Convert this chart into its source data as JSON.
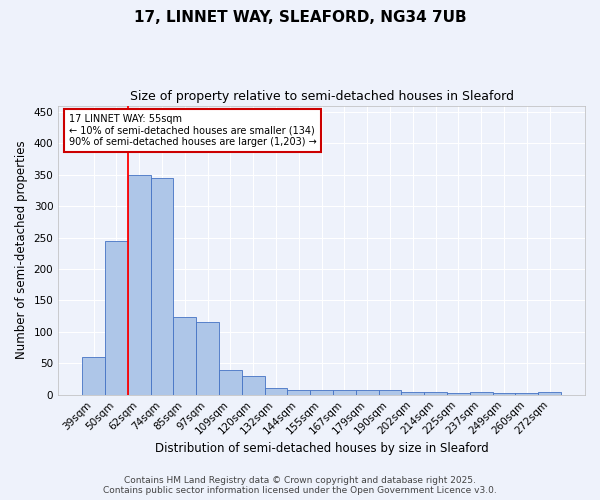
{
  "title_line1": "17, LINNET WAY, SLEAFORD, NG34 7UB",
  "title_line2": "Size of property relative to semi-detached houses in Sleaford",
  "xlabel": "Distribution of semi-detached houses by size in Sleaford",
  "ylabel": "Number of semi-detached properties",
  "categories": [
    "39sqm",
    "50sqm",
    "62sqm",
    "74sqm",
    "85sqm",
    "97sqm",
    "109sqm",
    "120sqm",
    "132sqm",
    "144sqm",
    "155sqm",
    "167sqm",
    "179sqm",
    "190sqm",
    "202sqm",
    "214sqm",
    "225sqm",
    "237sqm",
    "249sqm",
    "260sqm",
    "272sqm"
  ],
  "values": [
    60,
    245,
    350,
    345,
    123,
    115,
    40,
    29,
    10,
    7,
    8,
    7,
    8,
    8,
    5,
    4,
    2,
    5,
    2,
    2,
    4
  ],
  "bar_color": "#aec6e8",
  "bar_edge_color": "#4472c4",
  "bar_width": 1.0,
  "ylim": [
    0,
    460
  ],
  "yticks": [
    0,
    50,
    100,
    150,
    200,
    250,
    300,
    350,
    400,
    450
  ],
  "red_line_x": 1.5,
  "annotation_text": "17 LINNET WAY: 55sqm\n← 10% of semi-detached houses are smaller (134)\n90% of semi-detached houses are larger (1,203) →",
  "annotation_box_color": "#ffffff",
  "annotation_box_edge": "#cc0000",
  "footer_line1": "Contains HM Land Registry data © Crown copyright and database right 2025.",
  "footer_line2": "Contains public sector information licensed under the Open Government Licence v3.0.",
  "bg_color": "#eef2fb",
  "plot_bg_color": "#eef2fb",
  "grid_color": "#ffffff",
  "title_fontsize": 11,
  "subtitle_fontsize": 9,
  "axis_label_fontsize": 8.5,
  "tick_fontsize": 7.5,
  "footer_fontsize": 6.5
}
